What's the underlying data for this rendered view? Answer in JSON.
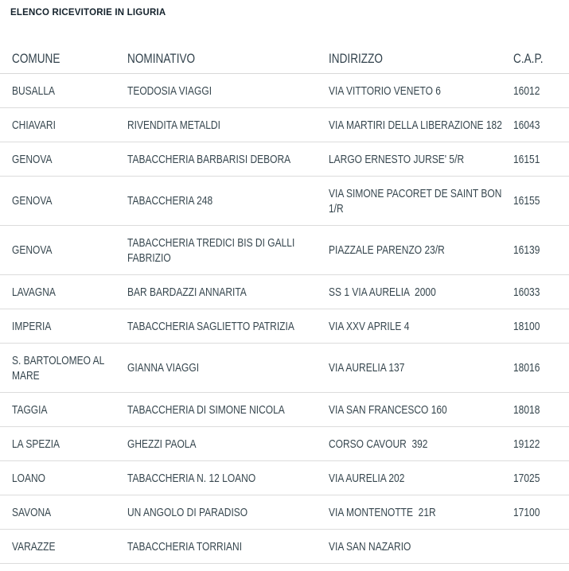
{
  "page": {
    "title": "ELENCO RICEVITORIE IN LIGURIA"
  },
  "colors": {
    "title_text": "#14222c",
    "table_text": "#37474f",
    "header_text": "#32424c",
    "row_border": "#dcdcdc",
    "background": "#ffffff"
  },
  "table": {
    "columns": [
      {
        "key": "comune",
        "label": "COMUNE"
      },
      {
        "key": "nominativo",
        "label": "NOMINATIVO"
      },
      {
        "key": "indirizzo",
        "label": "INDIRIZZO"
      },
      {
        "key": "cap",
        "label": "C.A.P."
      }
    ],
    "rows": [
      {
        "comune": "BUSALLA",
        "nominativo": "TEODOSIA VIAGGI",
        "indirizzo": "VIA VITTORIO VENETO 6",
        "cap": "16012"
      },
      {
        "comune": "CHIAVARI",
        "nominativo": "RIVENDITA METALDI",
        "indirizzo": "VIA MARTIRI DELLA LIBERAZIONE 182",
        "cap": "16043"
      },
      {
        "comune": "GENOVA",
        "nominativo": "TABACCHERIA BARBARISI DEBORA",
        "indirizzo": "LARGO ERNESTO JURSE' 5/R",
        "cap": "16151"
      },
      {
        "comune": "GENOVA",
        "nominativo": "TABACCHERIA 248",
        "indirizzo": "VIA SIMONE PACORET DE SAINT BON 1/R",
        "cap": "16155"
      },
      {
        "comune": "GENOVA",
        "nominativo": "TABACCHERIA TREDICI BIS DI GALLI FABRIZIO",
        "indirizzo": "PIAZZALE PARENZO 23/R",
        "cap": "16139"
      },
      {
        "comune": "LAVAGNA",
        "nominativo": "BAR BARDAZZI ANNARITA",
        "indirizzo": "SS 1 VIA AURELIA  2000",
        "cap": "16033"
      },
      {
        "comune": "IMPERIA",
        "nominativo": "TABACCHERIA SAGLIETTO PATRIZIA",
        "indirizzo": "VIA XXV APRILE 4",
        "cap": "18100"
      },
      {
        "comune": "S. BARTOLOMEO AL MARE",
        "nominativo": "GIANNA VIAGGI",
        "indirizzo": "VIA AURELIA 137",
        "cap": "18016"
      },
      {
        "comune": "TAGGIA",
        "nominativo": "TABACCHERIA DI SIMONE NICOLA",
        "indirizzo": "VIA SAN FRANCESCO 160",
        "cap": "18018"
      },
      {
        "comune": "LA SPEZIA",
        "nominativo": "GHEZZI PAOLA",
        "indirizzo": "CORSO CAVOUR  392",
        "cap": "19122"
      },
      {
        "comune": "LOANO",
        "nominativo": "TABACCHERIA N. 12 LOANO",
        "indirizzo": "VIA AURELIA 202",
        "cap": "17025"
      },
      {
        "comune": "SAVONA",
        "nominativo": "UN ANGOLO DI PARADISO",
        "indirizzo": "VIA MONTENOTTE  21R",
        "cap": "17100"
      },
      {
        "comune": "VARAZZE",
        "nominativo": "TABACCHERIA TORRIANI",
        "indirizzo": "VIA SAN NAZARIO",
        "cap": ""
      }
    ]
  }
}
